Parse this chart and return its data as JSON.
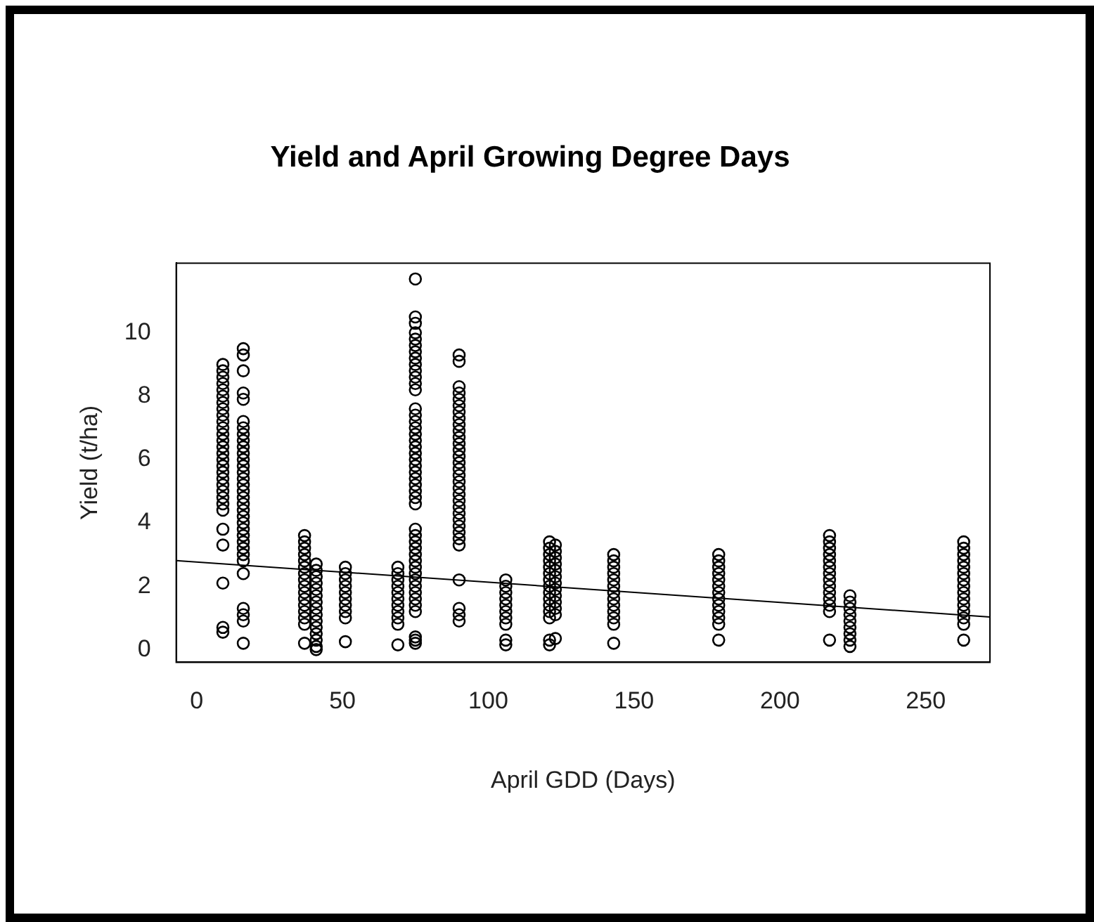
{
  "chart_data": {
    "type": "scatter",
    "title": "Yield and April Growing Degree Days",
    "xlabel": "April GDD (Days)",
    "ylabel": "Yield (t/ha)",
    "xlim": [
      -7,
      272
    ],
    "xticks": [
      0,
      50,
      100,
      150,
      200,
      250
    ],
    "ylim": [
      -0.4,
      12.2
    ],
    "yticks": [
      0,
      2,
      4,
      6,
      8,
      10
    ],
    "grid": false,
    "legend": false,
    "marker": "circle",
    "series": [
      {
        "color": "#000000",
        "x": [
          9,
          9,
          9,
          9,
          9,
          9,
          9,
          9,
          9,
          9,
          9,
          9,
          9,
          9,
          9,
          9,
          9,
          9,
          9,
          9,
          9,
          9,
          9,
          9,
          9,
          9,
          9,
          9,
          9
        ],
        "values": [
          9.0,
          8.8,
          8.6,
          8.4,
          8.2,
          8.0,
          7.8,
          7.6,
          7.4,
          7.2,
          7.0,
          6.8,
          6.6,
          6.4,
          6.2,
          6.0,
          5.8,
          5.6,
          5.4,
          5.2,
          5.0,
          4.8,
          4.6,
          4.4,
          3.8,
          3.3,
          2.1,
          0.7,
          0.55
        ]
      },
      {
        "color": "#000000",
        "x": [
          16,
          16,
          16,
          16,
          16,
          16,
          16,
          16,
          16,
          16,
          16,
          16,
          16,
          16,
          16,
          16,
          16,
          16,
          16,
          16,
          16,
          16,
          16,
          16,
          16,
          16,
          16,
          16,
          16,
          16,
          16,
          16,
          16
        ],
        "values": [
          9.5,
          9.3,
          8.8,
          8.1,
          7.9,
          7.2,
          7.0,
          6.8,
          6.6,
          6.4,
          6.2,
          6.0,
          5.8,
          5.6,
          5.4,
          5.2,
          5.0,
          4.8,
          4.6,
          4.4,
          4.2,
          4.0,
          3.8,
          3.6,
          3.4,
          3.2,
          3.0,
          2.8,
          2.4,
          1.3,
          1.1,
          0.9,
          0.2
        ]
      },
      {
        "color": "#000000",
        "x": [
          37,
          37,
          37,
          37,
          37,
          37,
          37,
          37,
          37,
          37,
          37,
          37,
          37,
          37,
          37,
          37
        ],
        "values": [
          3.6,
          3.4,
          3.2,
          3.0,
          2.8,
          2.6,
          2.4,
          2.2,
          2.0,
          1.8,
          1.6,
          1.4,
          1.2,
          1.0,
          0.8,
          0.2
        ]
      },
      {
        "color": "#000000",
        "x": [
          41,
          41,
          41,
          41,
          41,
          41,
          41,
          41,
          41,
          41,
          41,
          41,
          41,
          41,
          41
        ],
        "values": [
          2.7,
          2.5,
          2.3,
          2.1,
          1.9,
          1.7,
          1.5,
          1.3,
          1.1,
          0.9,
          0.7,
          0.5,
          0.3,
          0.1,
          0.0
        ]
      },
      {
        "color": "#000000",
        "x": [
          51,
          51,
          51,
          51,
          51,
          51,
          51,
          51,
          51,
          51
        ],
        "values": [
          2.6,
          2.4,
          2.2,
          2.0,
          1.8,
          1.6,
          1.4,
          1.2,
          1.0,
          0.25
        ]
      },
      {
        "color": "#000000",
        "x": [
          69,
          69,
          69,
          69,
          69,
          69,
          69,
          69,
          69,
          69,
          69
        ],
        "values": [
          2.6,
          2.4,
          2.2,
          2.0,
          1.8,
          1.6,
          1.4,
          1.2,
          1.0,
          0.8,
          0.15
        ]
      },
      {
        "color": "#000000",
        "x": [
          75,
          75,
          75,
          75,
          75,
          75,
          75,
          75,
          75,
          75,
          75,
          75,
          75,
          75,
          75,
          75,
          75,
          75,
          75,
          75,
          75,
          75,
          75,
          75,
          75,
          75,
          75,
          75,
          75,
          75,
          75,
          75,
          75,
          75,
          75,
          75,
          75,
          75,
          75,
          75,
          75,
          75,
          75,
          75,
          75,
          75
        ],
        "values": [
          11.7,
          10.5,
          10.3,
          10.0,
          9.8,
          9.6,
          9.4,
          9.2,
          9.0,
          8.8,
          8.6,
          8.4,
          8.2,
          7.6,
          7.4,
          7.2,
          7.0,
          6.8,
          6.6,
          6.4,
          6.2,
          6.0,
          5.8,
          5.6,
          5.4,
          5.2,
          5.0,
          4.8,
          4.6,
          3.8,
          3.6,
          3.4,
          3.2,
          3.0,
          2.8,
          2.6,
          2.4,
          2.2,
          2.0,
          1.8,
          1.6,
          1.4,
          1.2,
          0.4,
          0.3,
          0.2
        ]
      },
      {
        "color": "#000000",
        "x": [
          90,
          90,
          90,
          90,
          90,
          90,
          90,
          90,
          90,
          90,
          90,
          90,
          90,
          90,
          90,
          90,
          90,
          90,
          90,
          90,
          90,
          90,
          90,
          90,
          90,
          90,
          90,
          90,
          90,
          90,
          90,
          90
        ],
        "values": [
          9.3,
          9.1,
          8.3,
          8.1,
          7.9,
          7.7,
          7.5,
          7.3,
          7.1,
          6.9,
          6.7,
          6.5,
          6.3,
          6.1,
          5.9,
          5.7,
          5.5,
          5.3,
          5.1,
          4.9,
          4.7,
          4.5,
          4.3,
          4.1,
          3.9,
          3.7,
          3.5,
          3.3,
          2.2,
          1.3,
          1.1,
          0.9
        ]
      },
      {
        "color": "#000000",
        "x": [
          106,
          106,
          106,
          106,
          106,
          106,
          106,
          106,
          106,
          106
        ],
        "values": [
          2.2,
          2.0,
          1.8,
          1.6,
          1.4,
          1.2,
          1.0,
          0.8,
          0.3,
          0.15
        ]
      },
      {
        "color": "#000000",
        "x": [
          121,
          121,
          121,
          121,
          121,
          121,
          121,
          121,
          121,
          121,
          121,
          121,
          121,
          121,
          121
        ],
        "values": [
          3.4,
          3.2,
          3.0,
          2.8,
          2.6,
          2.4,
          2.2,
          2.0,
          1.8,
          1.6,
          1.4,
          1.2,
          1.0,
          0.3,
          0.15
        ]
      },
      {
        "color": "#000000",
        "x": [
          123,
          123,
          123,
          123,
          123,
          123,
          123,
          123,
          123,
          123,
          123,
          123,
          123
        ],
        "values": [
          3.3,
          3.1,
          2.9,
          2.7,
          2.5,
          2.3,
          2.1,
          1.9,
          1.7,
          1.5,
          1.3,
          1.1,
          0.35
        ]
      },
      {
        "color": "#000000",
        "x": [
          143,
          143,
          143,
          143,
          143,
          143,
          143,
          143,
          143,
          143,
          143,
          143,
          143
        ],
        "values": [
          3.0,
          2.8,
          2.6,
          2.4,
          2.2,
          2.0,
          1.8,
          1.6,
          1.4,
          1.2,
          1.0,
          0.8,
          0.2
        ]
      },
      {
        "color": "#000000",
        "x": [
          179,
          179,
          179,
          179,
          179,
          179,
          179,
          179,
          179,
          179,
          179,
          179,
          179
        ],
        "values": [
          3.0,
          2.8,
          2.6,
          2.4,
          2.2,
          2.0,
          1.8,
          1.6,
          1.4,
          1.2,
          1.0,
          0.8,
          0.3
        ]
      },
      {
        "color": "#000000",
        "x": [
          217,
          217,
          217,
          217,
          217,
          217,
          217,
          217,
          217,
          217,
          217,
          217,
          217,
          217
        ],
        "values": [
          3.6,
          3.4,
          3.2,
          3.0,
          2.8,
          2.6,
          2.4,
          2.2,
          2.0,
          1.8,
          1.6,
          1.4,
          1.2,
          0.3
        ]
      },
      {
        "color": "#000000",
        "x": [
          224,
          224,
          224,
          224,
          224,
          224,
          224,
          224,
          224
        ],
        "values": [
          1.7,
          1.5,
          1.3,
          1.1,
          0.9,
          0.7,
          0.5,
          0.3,
          0.1
        ]
      },
      {
        "color": "#000000",
        "x": [
          263,
          263,
          263,
          263,
          263,
          263,
          263,
          263,
          263,
          263,
          263,
          263,
          263,
          263,
          263
        ],
        "values": [
          3.4,
          3.2,
          3.0,
          2.8,
          2.6,
          2.4,
          2.2,
          2.0,
          1.8,
          1.6,
          1.4,
          1.2,
          1.0,
          0.8,
          0.3
        ]
      },
      {
        "type": "line",
        "marker": "none",
        "color": "#000000",
        "x": [
          -7,
          272
        ],
        "values": [
          2.81,
          1.03
        ]
      }
    ]
  }
}
